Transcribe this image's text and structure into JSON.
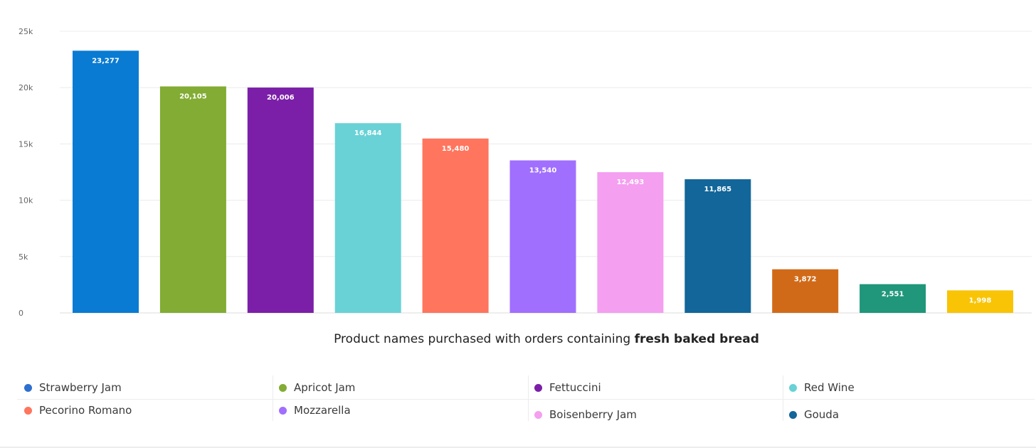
{
  "chart_data": {
    "type": "bar",
    "categories": [
      "Strawberry Jam",
      "Apricot Jam",
      "Fettuccini",
      "Red Wine",
      "Pecorino Romano",
      "Mozzarella",
      "Boisenberry Jam",
      "Gouda",
      "",
      "",
      ""
    ],
    "values": [
      23277,
      20105,
      20006,
      16844,
      15480,
      13540,
      12493,
      11865,
      3872,
      2551,
      1998
    ],
    "value_labels": [
      "23,277",
      "20,105",
      "20,006",
      "16,844",
      "15,480",
      "13,540",
      "12,493",
      "11,865",
      "3,872",
      "2,551",
      "1,998"
    ],
    "colors": [
      "#0a7bd2",
      "#82ac33",
      "#7b1fa8",
      "#69d2d6",
      "#ff755d",
      "#a06ffe",
      "#f49ff0",
      "#126699",
      "#d16a18",
      "#20967a",
      "#f8c405"
    ],
    "yticks": [
      0,
      5000,
      10000,
      15000,
      20000,
      25000
    ],
    "ytick_labels": [
      "0",
      "5k",
      "10k",
      "15k",
      "20k",
      "25k"
    ],
    "ylim": [
      0,
      25000
    ],
    "grid": true,
    "title_prefix": "Product names purchased with orders containing ",
    "title_bold": "fresh baked bread",
    "xlabel": "",
    "ylabel": "",
    "legend_position": "bottom"
  },
  "legend": [
    {
      "label": "Strawberry Jam",
      "color": "#2f6fcf"
    },
    {
      "label": "Apricot Jam",
      "color": "#82ac33"
    },
    {
      "label": "Fettuccini",
      "color": "#7b1fa8"
    },
    {
      "label": "Red Wine",
      "color": "#69d2d6"
    },
    {
      "label": "Pecorino Romano",
      "color": "#ff755d"
    },
    {
      "label": "Mozzarella",
      "color": "#a06ffe"
    },
    {
      "label": "Boisenberry Jam",
      "color": "#f49ff0"
    },
    {
      "label": "Gouda",
      "color": "#126699"
    }
  ]
}
